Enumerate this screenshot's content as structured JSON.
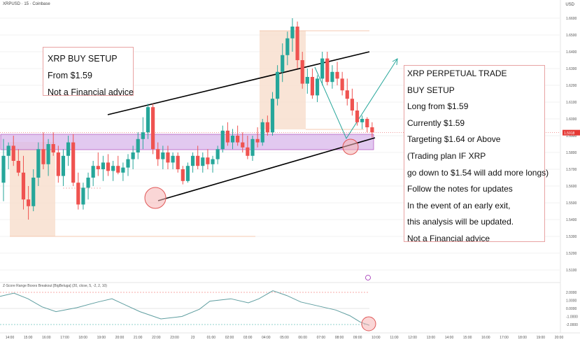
{
  "header": {
    "symbol_line": "XRPUSD · 15 · Coinbase",
    "currency": "USD"
  },
  "notes": {
    "left": [
      "XRP BUY SETUP",
      "From $1.59",
      "Not a Financial advice"
    ],
    "right": [
      "XRP PERPETUAL TRADE",
      "BUY SETUP",
      "Long from $1.59",
      "Currently $1.59",
      "Targeting $1.64 or Above",
      "(Trading plan IF XRP",
      "go down to $1.54 will add more longs)",
      "Follow the notes for updates",
      "In the event of an early exit,",
      "this analysis will be updated.",
      "Not a Financial advice"
    ]
  },
  "indicator": {
    "title": "Z-Score Range Boxes Breakout [BigBeluga] (20, close, 5, -2, 2, 10)",
    "axis_labels": [
      "2.0000",
      "1.0000",
      "0.0000",
      "-1.0000",
      "-2.0000"
    ]
  },
  "chart_data": {
    "type": "candlestick",
    "symbol": "XRPUSD",
    "timeframe": "15",
    "exchange": "Coinbase",
    "ylim": [
      1.505,
      1.665
    ],
    "y_ticks": [
      "1.6600",
      "1.6500",
      "1.6400",
      "1.6300",
      "1.6200",
      "1.6100",
      "1.6000",
      "1.5900",
      "1.5800",
      "1.5700",
      "1.5600",
      "1.5500",
      "1.5400",
      "1.5300",
      "1.5200",
      "1.5100"
    ],
    "current_price_label": "1.5918",
    "x_ticks": [
      "14:00",
      "15:00",
      "16:00",
      "17:00",
      "18:00",
      "19:00",
      "20:00",
      "21:00",
      "22:00",
      "23:00",
      "23",
      "01:00",
      "02:00",
      "03:00",
      "04:00",
      "05:00",
      "06:00",
      "07:00",
      "08:00",
      "09:00",
      "10:00",
      "11:00",
      "12:00",
      "13:00",
      "14:00",
      "15:00",
      "16:00",
      "17:00",
      "18:00",
      "19:00",
      "20:00"
    ],
    "candles": [
      [
        1.562,
        1.588,
        1.551,
        1.578
      ],
      [
        1.578,
        1.586,
        1.57,
        1.584
      ],
      [
        1.584,
        1.59,
        1.572,
        1.575
      ],
      [
        1.575,
        1.582,
        1.566,
        1.568
      ],
      [
        1.568,
        1.578,
        1.546,
        1.552
      ],
      [
        1.552,
        1.56,
        1.54,
        1.548
      ],
      [
        1.548,
        1.57,
        1.545,
        1.565
      ],
      [
        1.565,
        1.586,
        1.56,
        1.582
      ],
      [
        1.582,
        1.592,
        1.57,
        1.573
      ],
      [
        1.573,
        1.588,
        1.566,
        1.585
      ],
      [
        1.585,
        1.592,
        1.578,
        1.58
      ],
      [
        1.58,
        1.584,
        1.562,
        1.566
      ],
      [
        1.566,
        1.582,
        1.56,
        1.578
      ],
      [
        1.578,
        1.59,
        1.572,
        1.586
      ],
      [
        1.586,
        1.591,
        1.56,
        1.562
      ],
      [
        1.562,
        1.568,
        1.546,
        1.549
      ],
      [
        1.549,
        1.562,
        1.546,
        1.559
      ],
      [
        1.559,
        1.568,
        1.552,
        1.565
      ],
      [
        1.565,
        1.575,
        1.56,
        1.572
      ],
      [
        1.572,
        1.58,
        1.566,
        1.57
      ],
      [
        1.57,
        1.578,
        1.563,
        1.574
      ],
      [
        1.574,
        1.579,
        1.566,
        1.569
      ],
      [
        1.569,
        1.575,
        1.563,
        1.572
      ],
      [
        1.572,
        1.578,
        1.567,
        1.568
      ],
      [
        1.568,
        1.574,
        1.563,
        1.571
      ],
      [
        1.571,
        1.579,
        1.566,
        1.576
      ],
      [
        1.576,
        1.584,
        1.57,
        1.58
      ],
      [
        1.58,
        1.592,
        1.576,
        1.588
      ],
      [
        1.588,
        1.601,
        1.582,
        1.592
      ],
      [
        1.592,
        1.609,
        1.588,
        1.607
      ],
      [
        1.607,
        1.609,
        1.579,
        1.582
      ],
      [
        1.582,
        1.586,
        1.572,
        1.576
      ],
      [
        1.576,
        1.584,
        1.57,
        1.58
      ],
      [
        1.58,
        1.584,
        1.57,
        1.574
      ],
      [
        1.574,
        1.58,
        1.57,
        1.578
      ],
      [
        1.578,
        1.58,
        1.568,
        1.57
      ],
      [
        1.57,
        1.572,
        1.561,
        1.563
      ],
      [
        1.563,
        1.574,
        1.562,
        1.572
      ],
      [
        1.572,
        1.58,
        1.568,
        1.578
      ],
      [
        1.578,
        1.584,
        1.57,
        1.572
      ],
      [
        1.572,
        1.58,
        1.568,
        1.577
      ],
      [
        1.577,
        1.582,
        1.57,
        1.573
      ],
      [
        1.573,
        1.578,
        1.568,
        1.576
      ],
      [
        1.576,
        1.584,
        1.573,
        1.582
      ],
      [
        1.582,
        1.596,
        1.58,
        1.593
      ],
      [
        1.593,
        1.598,
        1.584,
        1.586
      ],
      [
        1.586,
        1.594,
        1.582,
        1.59
      ],
      [
        1.59,
        1.596,
        1.584,
        1.586
      ],
      [
        1.586,
        1.592,
        1.58,
        1.583
      ],
      [
        1.583,
        1.59,
        1.576,
        1.578
      ],
      [
        1.578,
        1.59,
        1.575,
        1.588
      ],
      [
        1.588,
        1.595,
        1.583,
        1.586
      ],
      [
        1.586,
        1.6,
        1.584,
        1.598
      ],
      [
        1.598,
        1.602,
        1.59,
        1.592
      ],
      [
        1.592,
        1.616,
        1.59,
        1.612
      ],
      [
        1.612,
        1.632,
        1.608,
        1.628
      ],
      [
        1.628,
        1.645,
        1.622,
        1.638
      ],
      [
        1.638,
        1.652,
        1.632,
        1.648
      ],
      [
        1.648,
        1.66,
        1.64,
        1.655
      ],
      [
        1.655,
        1.658,
        1.63,
        1.635
      ],
      [
        1.635,
        1.64,
        1.618,
        1.621
      ],
      [
        1.621,
        1.63,
        1.615,
        1.625
      ],
      [
        1.625,
        1.63,
        1.612,
        1.614
      ],
      [
        1.614,
        1.626,
        1.61,
        1.624
      ],
      [
        1.624,
        1.64,
        1.62,
        1.636
      ],
      [
        1.636,
        1.64,
        1.62,
        1.622
      ],
      [
        1.622,
        1.632,
        1.618,
        1.628
      ],
      [
        1.628,
        1.634,
        1.62,
        1.624
      ],
      [
        1.624,
        1.628,
        1.614,
        1.617
      ],
      [
        1.617,
        1.624,
        1.608,
        1.612
      ],
      [
        1.612,
        1.618,
        1.602,
        1.605
      ],
      [
        1.605,
        1.61,
        1.596,
        1.598
      ],
      [
        1.598,
        1.602,
        1.594,
        1.6
      ],
      [
        1.6,
        1.601,
        1.592,
        1.595
      ],
      [
        1.595,
        1.598,
        1.589,
        1.592
      ]
    ]
  }
}
